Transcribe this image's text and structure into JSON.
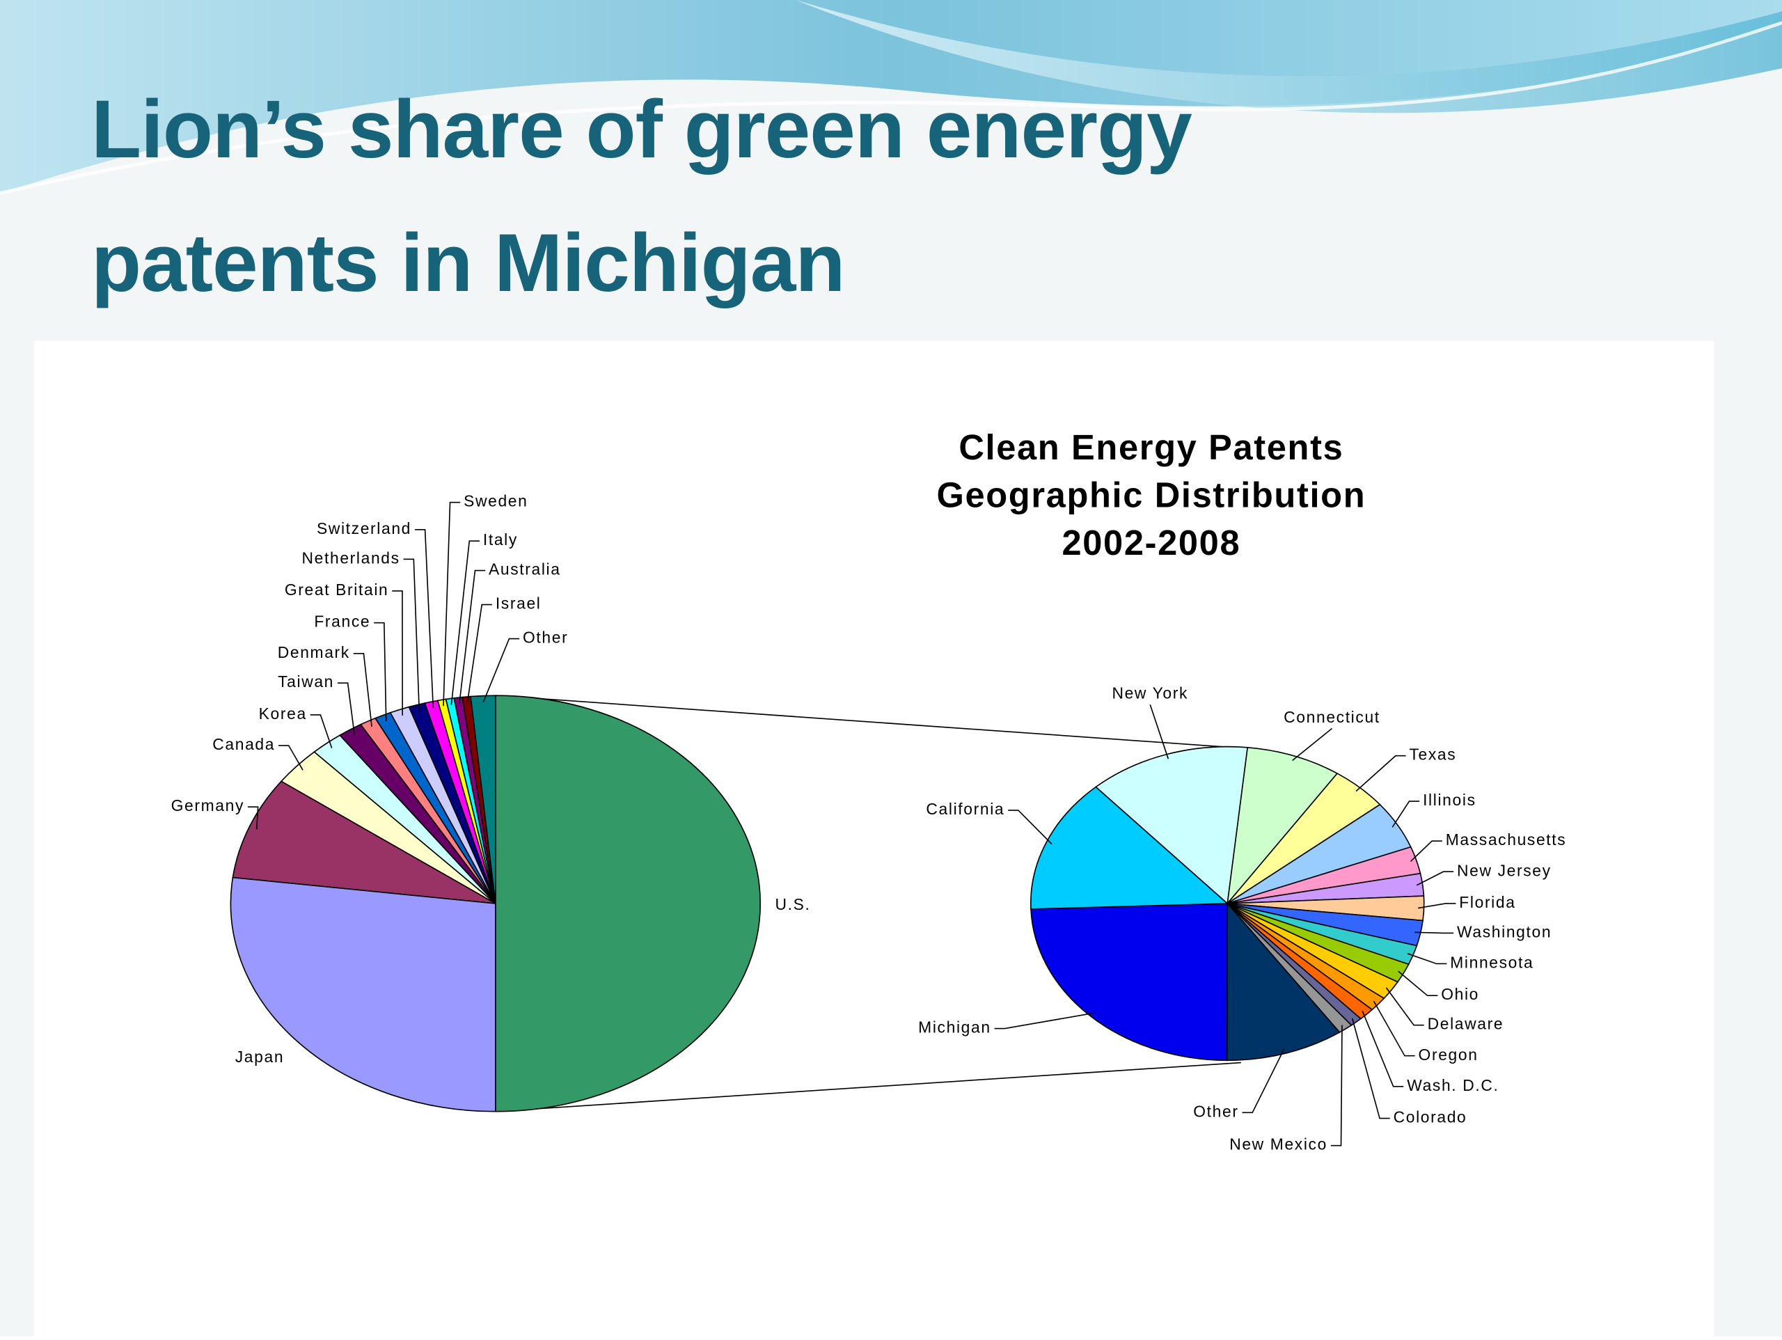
{
  "slide": {
    "title": [
      "Lion’s share of green energy",
      "patents in Michigan"
    ]
  },
  "chart_data": [
    {
      "type": "pie",
      "title": [
        "Clean Energy Patents",
        "Geographic Distribution",
        "2002-2008"
      ],
      "categories": [
        "U.S.",
        "Japan",
        "Germany",
        "Canada",
        "Korea",
        "Taiwan",
        "Denmark",
        "France",
        "Great Britain",
        "Netherlands",
        "Switzerland",
        "Sweden",
        "Italy",
        "Australia",
        "Israel",
        "Other"
      ],
      "values": [
        50,
        27,
        8,
        3,
        2,
        1.5,
        1,
        1,
        1.2,
        1,
        0.8,
        0.5,
        0.5,
        0.5,
        0.5,
        1.5
      ],
      "colors": [
        "#339966",
        "#9999ff",
        "#993366",
        "#ffffcc",
        "#ccffff",
        "#660066",
        "#ff8080",
        "#0066cc",
        "#ccccff",
        "#000080",
        "#ff00ff",
        "#ffff00",
        "#00ffff",
        "#800080",
        "#800000",
        "#008080"
      ]
    },
    {
      "type": "pie",
      "categories": [
        "New York",
        "Connecticut",
        "Texas",
        "Illinois",
        "Massachusetts",
        "New Jersey",
        "Florida",
        "Washington",
        "Minnesota",
        "Ohio",
        "Delaware",
        "Oregon",
        "Wash. D.C.",
        "Colorado",
        "New Mexico",
        "Other",
        "Michigan",
        "California"
      ],
      "values": [
        13.3,
        7.8,
        4.7,
        5,
        2.8,
        2.3,
        2.5,
        2.6,
        2,
        2,
        2,
        1.5,
        1.3,
        1,
        1.2,
        9.7,
        24.4,
        13.9
      ],
      "colors": [
        "#ccffff",
        "#ccffcc",
        "#ffff99",
        "#99ccff",
        "#ff99cc",
        "#cc99ff",
        "#ffcc99",
        "#3366ff",
        "#33cccc",
        "#99cc00",
        "#ffcc00",
        "#ff9900",
        "#ff6600",
        "#666699",
        "#969696",
        "#003366",
        "#0000ee",
        "#00ccff"
      ]
    }
  ]
}
